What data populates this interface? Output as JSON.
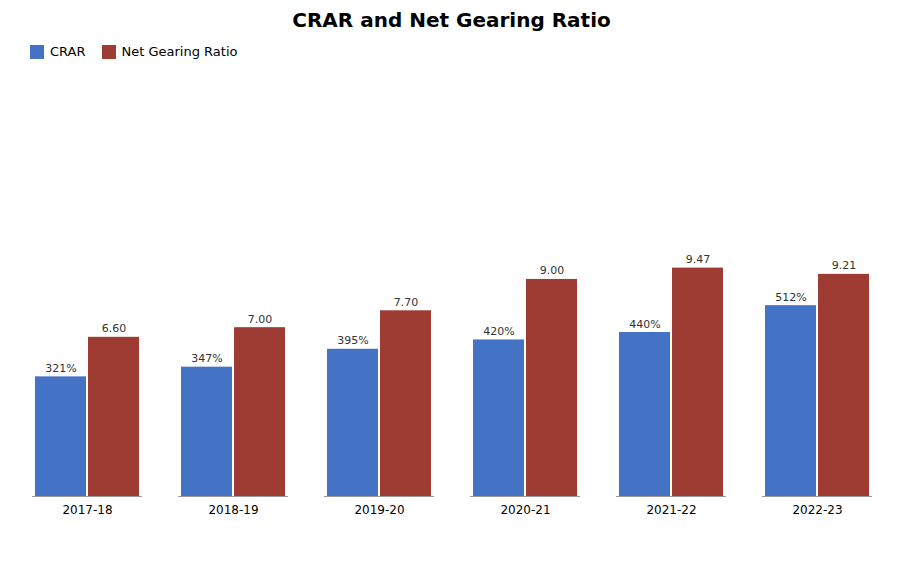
{
  "chart_data": {
    "type": "bar",
    "title": "CRAR and Net Gearing Ratio",
    "categories": [
      "2017-18",
      "2018-19",
      "2019-20",
      "2020-21",
      "2021-22",
      "2022-23"
    ],
    "series": [
      {
        "name": "CRAR",
        "color": "#4472C4",
        "values": [
          321,
          347,
          395,
          420,
          440,
          512
        ],
        "value_labels": [
          "321%",
          "347%",
          "395%",
          "420%",
          "440%",
          "512%"
        ]
      },
      {
        "name": "Net Gearing Ratio",
        "color": "#9E3B33",
        "axis": "y2",
        "values": [
          6.6,
          7.0,
          7.7,
          9.0,
          9.47,
          9.21
        ],
        "value_labels": [
          "6.60",
          "7.00",
          "7.70",
          "9.00",
          "9.47",
          "9.21"
        ]
      }
    ],
    "ylim": [
      0,
      1100
    ],
    "y2lim": [
      0,
      17
    ],
    "data_labels": true,
    "tick_labels": "x",
    "legend": "upper left"
  }
}
